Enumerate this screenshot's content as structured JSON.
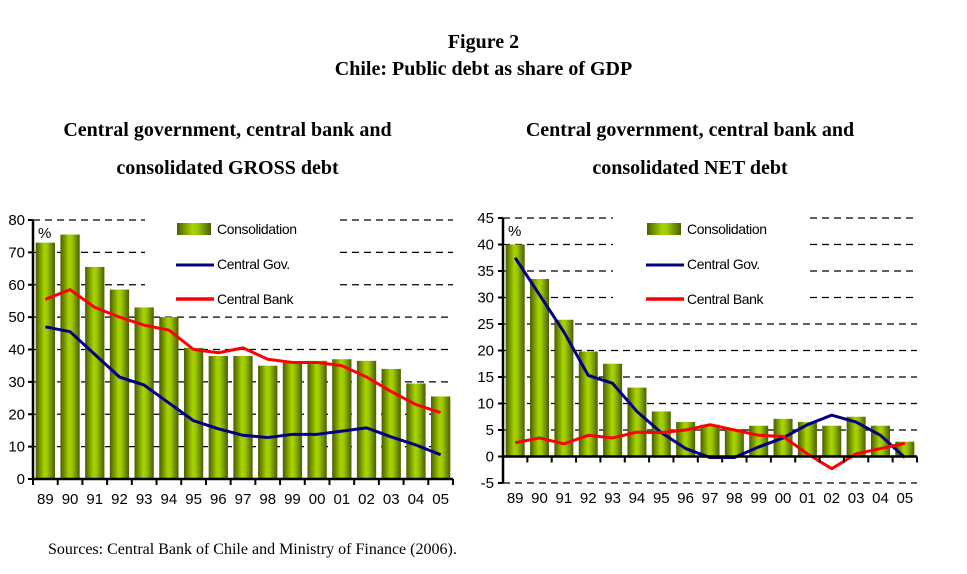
{
  "figure": {
    "number": "Figure 2",
    "title": "Chile: Public debt as share of GDP",
    "source": "Sources: Central Bank of Chile and Ministry of Finance (2006)."
  },
  "colors": {
    "consolidation": "#8db600",
    "central_gov": "#000080",
    "central_bank": "#ff0000"
  },
  "chart_data": [
    {
      "type": "bar",
      "title_line1": "Central government, central bank and",
      "title_line2": "consolidated GROSS  debt",
      "unit_label": "%",
      "xlabel": "",
      "ylabel": "",
      "ylim": [
        0,
        80
      ],
      "yticks": [
        0,
        10,
        20,
        30,
        40,
        50,
        60,
        70,
        80
      ],
      "grid": "dashed horizontal",
      "legend_position": "top-center",
      "categories": [
        "89",
        "90",
        "91",
        "92",
        "93",
        "94",
        "95",
        "96",
        "97",
        "98",
        "99",
        "00",
        "01",
        "02",
        "03",
        "04",
        "05"
      ],
      "series": [
        {
          "name": "Consolidation",
          "kind": "bar",
          "values": [
            73,
            75.5,
            65.5,
            58.5,
            53,
            50,
            40.5,
            38,
            38,
            35,
            36,
            36.5,
            37,
            36.5,
            34,
            29.5,
            25.5
          ]
        },
        {
          "name": "Central Gov.",
          "kind": "line",
          "values": [
            47,
            45.5,
            38.5,
            31.5,
            29,
            23.5,
            18,
            15.5,
            13.5,
            12.8,
            13.8,
            13.8,
            14.8,
            15.8,
            13,
            10.5,
            7.5
          ]
        },
        {
          "name": "Central Bank",
          "kind": "line",
          "values": [
            55.5,
            58.5,
            53,
            50,
            47.5,
            46,
            40,
            39,
            40.5,
            37,
            36,
            36,
            35,
            31.5,
            27,
            23,
            20.5
          ]
        }
      ]
    },
    {
      "type": "bar",
      "title_line1": "Central government, central bank and",
      "title_line2": "consolidated NET debt",
      "unit_label": "%",
      "xlabel": "",
      "ylabel": "",
      "ylim": [
        -5,
        45
      ],
      "yticks": [
        -5,
        0,
        5,
        10,
        15,
        20,
        25,
        30,
        35,
        40,
        45
      ],
      "grid": "dashed horizontal",
      "legend_position": "top-center",
      "categories": [
        "89",
        "90",
        "91",
        "92",
        "93",
        "94",
        "95",
        "96",
        "97",
        "98",
        "99",
        "00",
        "01",
        "02",
        "03",
        "04",
        "05"
      ],
      "series": [
        {
          "name": "Consolidation",
          "kind": "bar",
          "values": [
            40,
            33.5,
            25.8,
            19.8,
            17.5,
            13,
            8.5,
            6.5,
            6,
            5.2,
            5.8,
            7.1,
            6.5,
            5.8,
            7.5,
            5.8,
            2.8
          ]
        },
        {
          "name": "Central Gov.",
          "kind": "line",
          "values": [
            37.5,
            30.5,
            23.5,
            15.3,
            13.8,
            8.5,
            4.5,
            1.5,
            -0.2,
            -0.2,
            1.8,
            3.5,
            6,
            7.8,
            6.5,
            4,
            -0.2
          ]
        },
        {
          "name": "Central Bank",
          "kind": "line",
          "values": [
            2.6,
            3.5,
            2.4,
            4,
            3.5,
            4.6,
            4.5,
            5,
            6,
            5,
            4,
            3.8,
            0.5,
            -2.3,
            0.5,
            1.5,
            2.5
          ]
        }
      ]
    }
  ]
}
